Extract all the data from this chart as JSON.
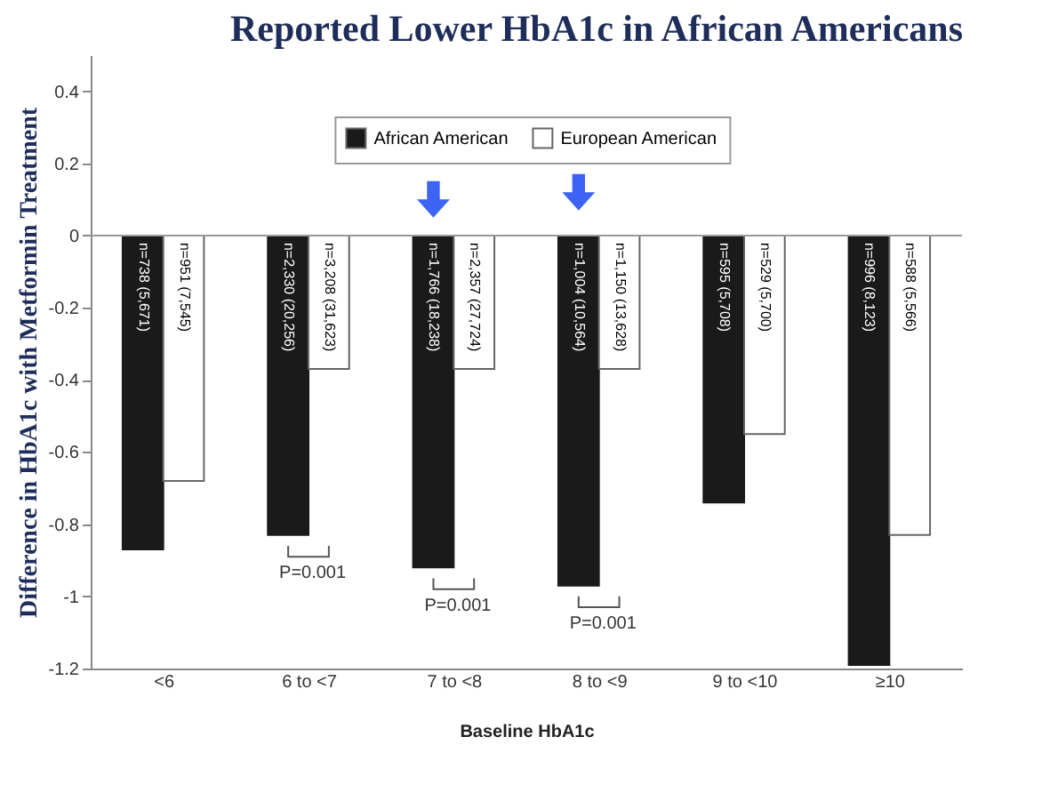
{
  "chart_data": {
    "type": "bar",
    "title": "Reported Lower HbA1c in African Americans",
    "xlabel": "Baseline HbA1c",
    "ylabel": "Difference in HbA1c with Metformin Treatment",
    "categories": [
      "<6",
      "6 to <7",
      "7 to <8",
      "8 to <9",
      "9 to <10",
      "≥10"
    ],
    "series": [
      {
        "name": "African American",
        "color": "#1a1a1a",
        "values": [
          -0.87,
          -0.83,
          -0.92,
          -0.97,
          -0.74,
          -1.19
        ],
        "value_labels": [
          "n=738 (5,671)",
          "n=2,330 (20,256)",
          "n=1,766 (18,238)",
          "n=1,004 (10,564)",
          "n=595 (5,708)",
          "n=996 (8,123)"
        ]
      },
      {
        "name": "European American",
        "color": "#ffffff",
        "values": [
          -0.68,
          -0.37,
          -0.37,
          -0.37,
          -0.55,
          -0.83
        ],
        "value_labels": [
          "n=951 (7,545)",
          "n=3,208 (31,623)",
          "n=2,357 (27,724)",
          "n=1,150 (13,628)",
          "n=529 (5,700)",
          "n=588 (5,566)"
        ]
      }
    ],
    "ylim": [
      -1.2,
      0.5
    ],
    "yticks": [
      -1.2,
      -1,
      -0.8,
      -0.6,
      -0.4,
      -0.2,
      0,
      0.2,
      0.4
    ],
    "ref_lines": [
      {
        "axis": "y",
        "value": 0,
        "color": "#999999"
      }
    ],
    "annotations": [
      "P=0.001",
      "P=0.001",
      "P=0.001"
    ],
    "legend": "top",
    "grid": false
  }
}
